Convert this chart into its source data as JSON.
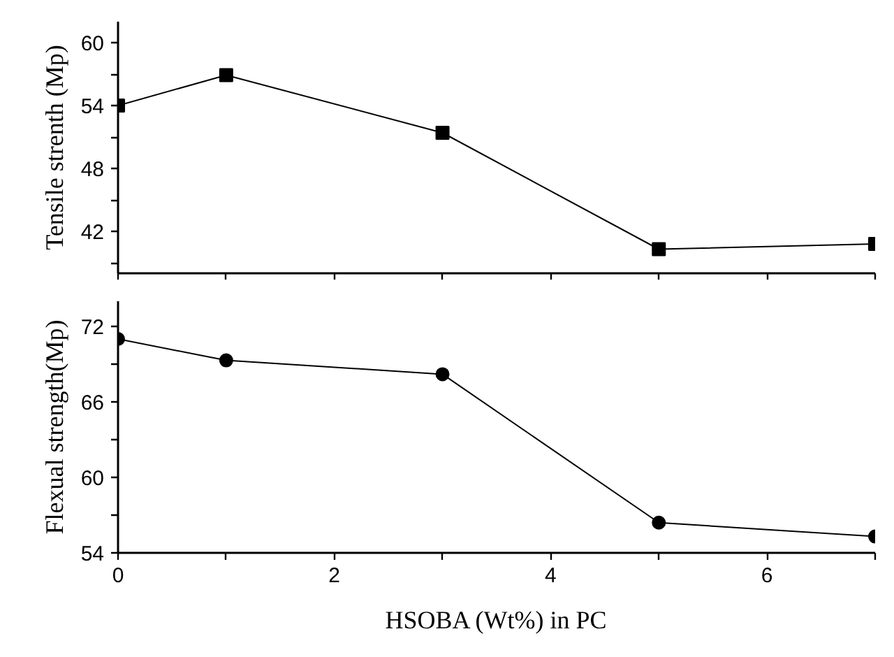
{
  "chart_data": [
    {
      "type": "line",
      "ylabel": "Tensile strenth (Mp)",
      "x": [
        0,
        1,
        3,
        5,
        7
      ],
      "marker": "square",
      "line_style": "solid",
      "grid": false,
      "tick_labels": "y",
      "series": [
        {
          "color": "#000000",
          "values": [
            54.0,
            56.9,
            51.4,
            40.3,
            40.8
          ]
        }
      ],
      "xlim": [
        0,
        7
      ],
      "xticks": [
        0,
        {
          "value": 1,
          "label": null
        },
        2,
        {
          "value": 3,
          "label": null
        },
        4,
        {
          "value": 5,
          "label": null
        },
        6,
        {
          "value": 7,
          "label": null
        }
      ],
      "ylim": [
        38,
        62
      ],
      "yticks": [
        {
          "value": 39,
          "label": null
        },
        42,
        {
          "value": 45,
          "label": null
        },
        48,
        {
          "value": 51,
          "label": null
        },
        54,
        {
          "value": 57,
          "label": null
        },
        60
      ]
    },
    {
      "type": "line",
      "xlabel": "HSOBA (Wt%) in PC",
      "ylabel": "Flexual strength(Mp)",
      "x": [
        0,
        1,
        3,
        5,
        7
      ],
      "marker": "circle",
      "line_style": "solid",
      "grid": false,
      "series": [
        {
          "color": "#000000",
          "values": [
            71.0,
            69.3,
            68.2,
            56.4,
            55.3
          ]
        }
      ],
      "xlim": [
        0,
        7
      ],
      "xticks": [
        0,
        {
          "value": 1,
          "label": null
        },
        2,
        {
          "value": 3,
          "label": null
        },
        4,
        {
          "value": 5,
          "label": null
        },
        6,
        {
          "value": 7,
          "label": null
        }
      ],
      "ylim": [
        54,
        74
      ],
      "yticks": [
        54,
        {
          "value": 57,
          "label": null
        },
        60,
        {
          "value": 63,
          "label": null
        },
        66,
        {
          "value": 69,
          "label": null
        },
        72
      ]
    }
  ]
}
